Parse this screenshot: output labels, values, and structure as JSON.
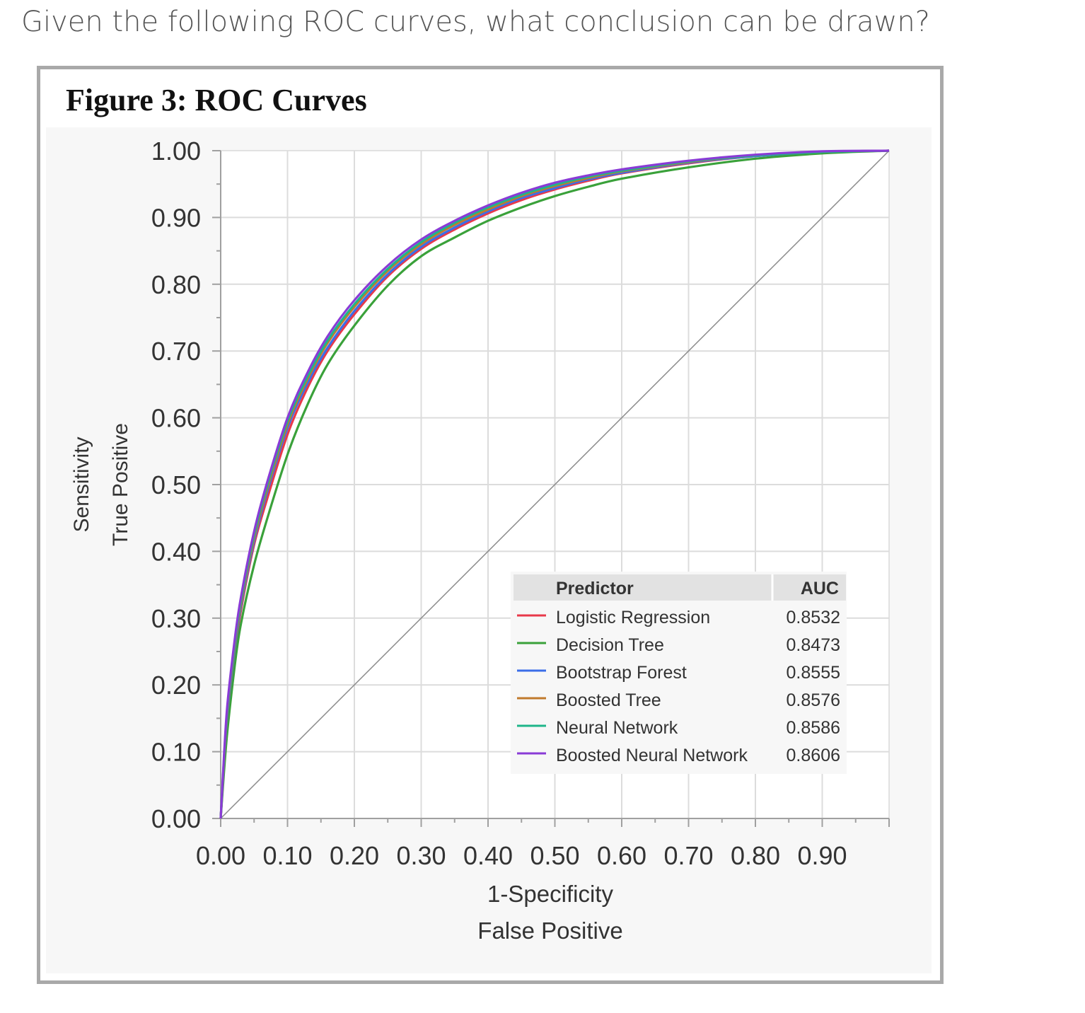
{
  "question": "Given the following ROC curves, what conclusion can be drawn?",
  "figure_title": "Figure 3: ROC Curves",
  "chart_data": {
    "type": "line",
    "title": "Figure 3: ROC Curves",
    "xlabel_line1": "1-Specificity",
    "xlabel_line2": "False Positive",
    "ylabel_line1": "Sensitivity",
    "ylabel_line2": "True Positive",
    "xlim": [
      0,
      1
    ],
    "ylim": [
      0,
      1
    ],
    "x_ticks": [
      "0.00",
      "0.10",
      "0.20",
      "0.30",
      "0.40",
      "0.50",
      "0.60",
      "0.70",
      "0.80",
      "0.90"
    ],
    "y_ticks": [
      "0.00",
      "0.10",
      "0.20",
      "0.30",
      "0.40",
      "0.50",
      "0.60",
      "0.70",
      "0.80",
      "0.90",
      "1.00"
    ],
    "grid": true,
    "diagonal_reference": true,
    "legend": {
      "placement": "bottom-right",
      "header_predictor": "Predictor",
      "header_auc": "AUC"
    },
    "series": [
      {
        "name": "Logistic Regression",
        "auc": "0.8532",
        "color": "#e8394a",
        "x": [
          0,
          0.005,
          0.01,
          0.02,
          0.03,
          0.05,
          0.07,
          0.1,
          0.13,
          0.16,
          0.2,
          0.25,
          0.3,
          0.35,
          0.4,
          0.45,
          0.5,
          0.55,
          0.6,
          0.7,
          0.8,
          0.9,
          1.0
        ],
        "y": [
          0,
          0.08,
          0.15,
          0.24,
          0.31,
          0.41,
          0.48,
          0.575,
          0.645,
          0.7,
          0.755,
          0.812,
          0.853,
          0.882,
          0.906,
          0.926,
          0.942,
          0.955,
          0.966,
          0.981,
          0.992,
          0.998,
          1.0
        ]
      },
      {
        "name": "Decision Tree",
        "auc": "0.8473",
        "color": "#3aa13a",
        "x": [
          0,
          0.005,
          0.01,
          0.02,
          0.03,
          0.05,
          0.07,
          0.1,
          0.13,
          0.16,
          0.2,
          0.25,
          0.3,
          0.35,
          0.4,
          0.45,
          0.5,
          0.55,
          0.6,
          0.7,
          0.8,
          0.9,
          1.0
        ],
        "y": [
          0,
          0.07,
          0.13,
          0.22,
          0.29,
          0.38,
          0.45,
          0.545,
          0.62,
          0.68,
          0.738,
          0.798,
          0.842,
          0.87,
          0.895,
          0.915,
          0.932,
          0.946,
          0.958,
          0.975,
          0.988,
          0.996,
          1.0
        ]
      },
      {
        "name": "Bootstrap Forest",
        "auc": "0.8555",
        "color": "#3b6ee8",
        "x": [
          0,
          0.005,
          0.01,
          0.02,
          0.03,
          0.05,
          0.07,
          0.1,
          0.13,
          0.16,
          0.2,
          0.25,
          0.3,
          0.35,
          0.4,
          0.45,
          0.5,
          0.55,
          0.6,
          0.7,
          0.8,
          0.9,
          1.0
        ],
        "y": [
          0,
          0.085,
          0.155,
          0.245,
          0.315,
          0.415,
          0.49,
          0.585,
          0.652,
          0.705,
          0.76,
          0.815,
          0.856,
          0.885,
          0.909,
          0.929,
          0.944,
          0.957,
          0.967,
          0.982,
          0.992,
          0.998,
          1.0
        ]
      },
      {
        "name": "Boosted Tree",
        "auc": "0.8576",
        "color": "#c07a2c",
        "x": [
          0,
          0.005,
          0.01,
          0.02,
          0.03,
          0.05,
          0.07,
          0.1,
          0.13,
          0.16,
          0.2,
          0.25,
          0.3,
          0.35,
          0.4,
          0.45,
          0.5,
          0.55,
          0.6,
          0.7,
          0.8,
          0.9,
          1.0
        ],
        "y": [
          0,
          0.085,
          0.16,
          0.25,
          0.32,
          0.42,
          0.495,
          0.59,
          0.658,
          0.712,
          0.766,
          0.82,
          0.86,
          0.889,
          0.912,
          0.932,
          0.947,
          0.959,
          0.969,
          0.983,
          0.993,
          0.998,
          1.0
        ]
      },
      {
        "name": "Neural Network",
        "auc": "0.8586",
        "color": "#1fb58a",
        "x": [
          0,
          0.005,
          0.01,
          0.02,
          0.03,
          0.05,
          0.07,
          0.1,
          0.13,
          0.16,
          0.2,
          0.25,
          0.3,
          0.35,
          0.4,
          0.45,
          0.5,
          0.55,
          0.6,
          0.7,
          0.8,
          0.9,
          1.0
        ],
        "y": [
          0,
          0.09,
          0.165,
          0.255,
          0.325,
          0.425,
          0.5,
          0.595,
          0.662,
          0.716,
          0.77,
          0.823,
          0.863,
          0.892,
          0.915,
          0.934,
          0.949,
          0.961,
          0.97,
          0.984,
          0.993,
          0.998,
          1.0
        ]
      },
      {
        "name": "Boosted Neural Network",
        "auc": "0.8606",
        "color": "#8a3bd6",
        "x": [
          0,
          0.005,
          0.01,
          0.02,
          0.03,
          0.05,
          0.07,
          0.1,
          0.13,
          0.16,
          0.2,
          0.25,
          0.3,
          0.35,
          0.4,
          0.45,
          0.5,
          0.55,
          0.6,
          0.7,
          0.8,
          0.9,
          1.0
        ],
        "y": [
          0,
          0.095,
          0.17,
          0.26,
          0.33,
          0.43,
          0.505,
          0.6,
          0.668,
          0.722,
          0.776,
          0.828,
          0.867,
          0.895,
          0.918,
          0.937,
          0.952,
          0.963,
          0.972,
          0.985,
          0.994,
          0.999,
          1.0
        ]
      }
    ]
  }
}
